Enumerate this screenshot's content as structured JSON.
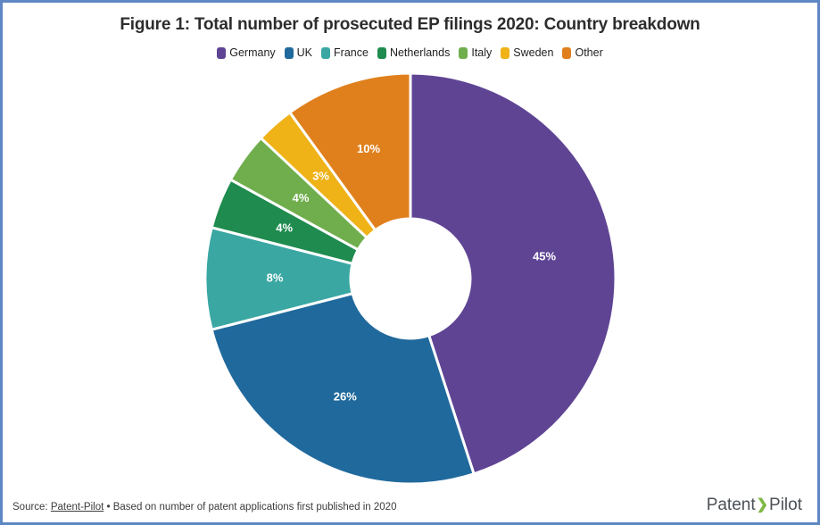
{
  "frame": {
    "border_color": "#5e87c3",
    "background": "#ffffff"
  },
  "header": {
    "title": "Figure 1: Total number of prosecuted EP filings 2020: Country breakdown"
  },
  "chart_data": {
    "type": "pie",
    "donut": true,
    "title": "Figure 1: Total number of prosecuted EP filings 2020: Country breakdown",
    "categories": [
      "Germany",
      "UK",
      "France",
      "Netherlands",
      "Italy",
      "Sweden",
      "Other"
    ],
    "values": [
      45,
      26,
      8,
      4,
      4,
      3,
      10
    ],
    "value_labels": [
      "45%",
      "26%",
      "8%",
      "4%",
      "4%",
      "3%",
      "10%"
    ],
    "colors": [
      "#5f4494",
      "#20699c",
      "#3aa7a3",
      "#1f8b4f",
      "#70ae4d",
      "#efb217",
      "#e0801d"
    ],
    "label_color": "#ffffff",
    "legend_position": "top",
    "start_angle_deg": 0,
    "direction": "clockwise",
    "slice_gap_color": "#ffffff"
  },
  "footer": {
    "source_prefix": "Source:",
    "source_link": "Patent-Pilot",
    "separator": "•",
    "source_note": "Based on number of patent applications first published in 2020",
    "logo": {
      "left": "Patent",
      "chevron": "❯",
      "right": "Pilot",
      "chevron_color": "#7db843",
      "text_color": "#4c5157"
    }
  }
}
